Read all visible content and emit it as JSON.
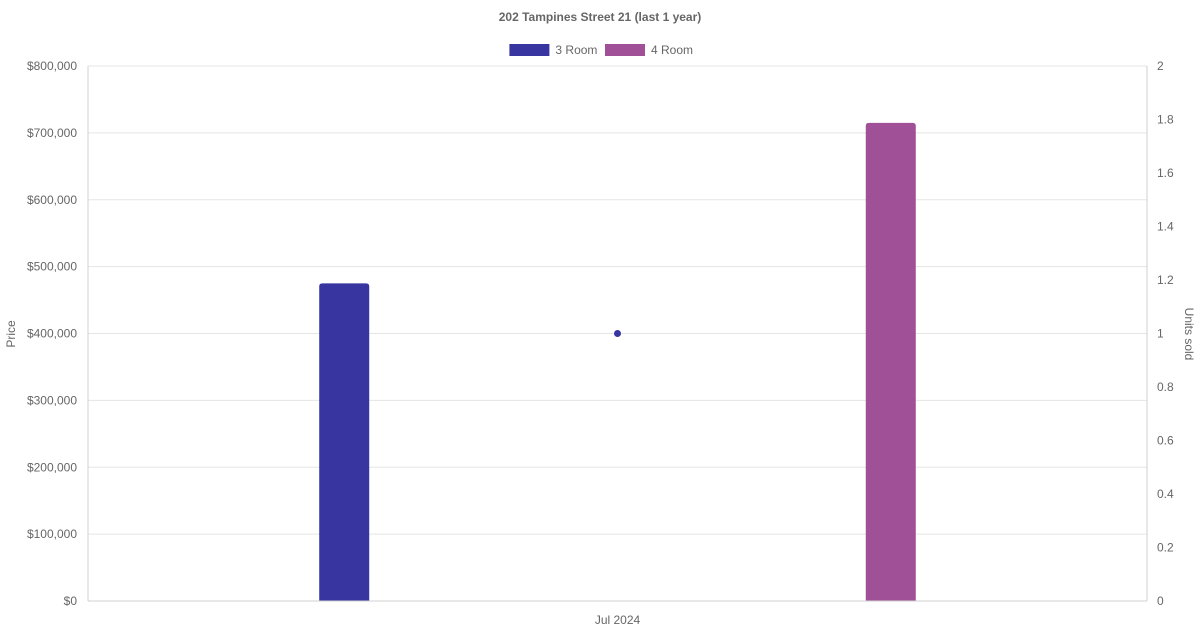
{
  "chart_data": {
    "type": "bar",
    "title": "202 Tampines Street 21 (last 1 year)",
    "categories": [
      "Jul 2024"
    ],
    "series": [
      {
        "name": "3 Room",
        "values": [
          475000
        ],
        "color": "#3834a0"
      },
      {
        "name": "4 Room",
        "values": [
          715000
        ],
        "color": "#a05096"
      }
    ],
    "units_sold": {
      "values": [
        1
      ],
      "color": "#3834a0"
    },
    "ylabel": "Price",
    "ylabel_right": "Units sold",
    "ylim": [
      0,
      800000
    ],
    "ylim_right": [
      0,
      2
    ],
    "y_ticks": [
      "$0",
      "$100,000",
      "$200,000",
      "$300,000",
      "$400,000",
      "$500,000",
      "$600,000",
      "$700,000",
      "$800,000"
    ],
    "y_ticks_right": [
      "0",
      "0.2",
      "0.4",
      "0.6",
      "0.8",
      "1",
      "1.2",
      "1.4",
      "1.6",
      "1.8",
      "2"
    ],
    "legend_position": "top",
    "grid": true
  }
}
